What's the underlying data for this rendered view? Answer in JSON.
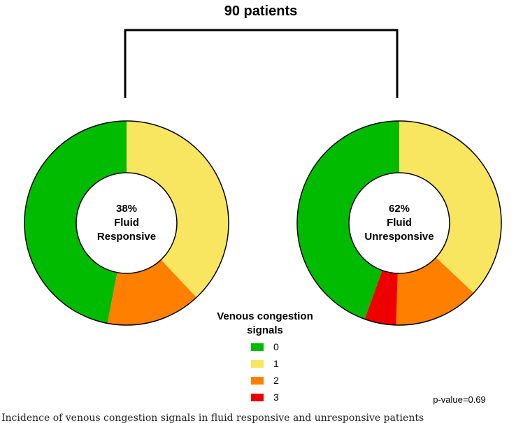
{
  "chart_data": {
    "type": "pie",
    "title": "90 patients",
    "legend": {
      "title_line1": "Venous congestion",
      "title_line2": "signals",
      "placement": "bottom-center",
      "entries": [
        "0",
        "1",
        "2",
        "3"
      ]
    },
    "colors": {
      "0": "#00bb00",
      "1": "#f8e660",
      "2": "#ff8000",
      "3": "#ee0000"
    },
    "groups": [
      {
        "name": "Fluid Responsive",
        "label_percent": "38%",
        "label_line1": "Fluid",
        "label_line2": "Responsive",
        "categories": [
          "0",
          "1",
          "2",
          "3"
        ],
        "values": [
          47,
          38,
          15,
          0
        ]
      },
      {
        "name": "Fluid Unresponsive",
        "label_percent": "62%",
        "label_line1": "Fluid",
        "label_line2": "Unresponsive",
        "categories": [
          "0",
          "1",
          "2",
          "3"
        ],
        "values": [
          44.5,
          37,
          13.5,
          5
        ]
      }
    ],
    "annotation": "p-value=0.69"
  },
  "caption": "Incidence of venous congestion signals in fluid responsive and unresponsive patients"
}
